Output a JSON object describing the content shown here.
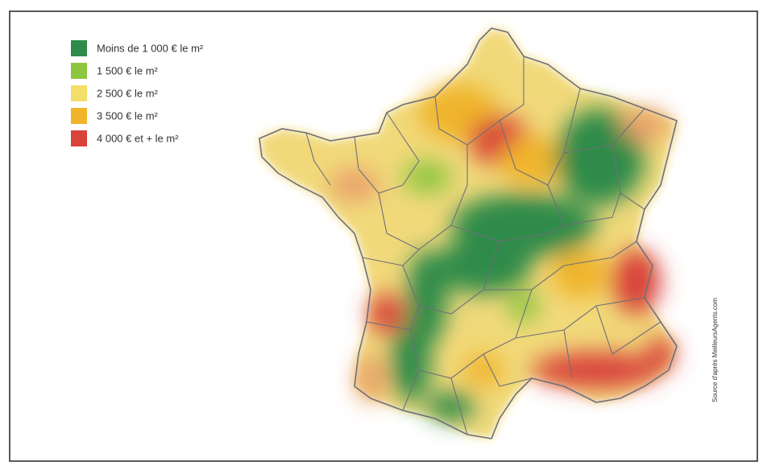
{
  "legend": [
    {
      "label": "Moins de 1 000 € le m²",
      "color": "#2e8b4a"
    },
    {
      "label": "1 500 € le m²",
      "color": "#8dc63f"
    },
    {
      "label": "2 500 € le m²",
      "color": "#f2df6a"
    },
    {
      "label": "3 500 € le m²",
      "color": "#f0b429"
    },
    {
      "label": "4 000 € et + le m²",
      "color": "#d9433a"
    }
  ],
  "source": "Source d'après MeilleursAgents.com"
}
